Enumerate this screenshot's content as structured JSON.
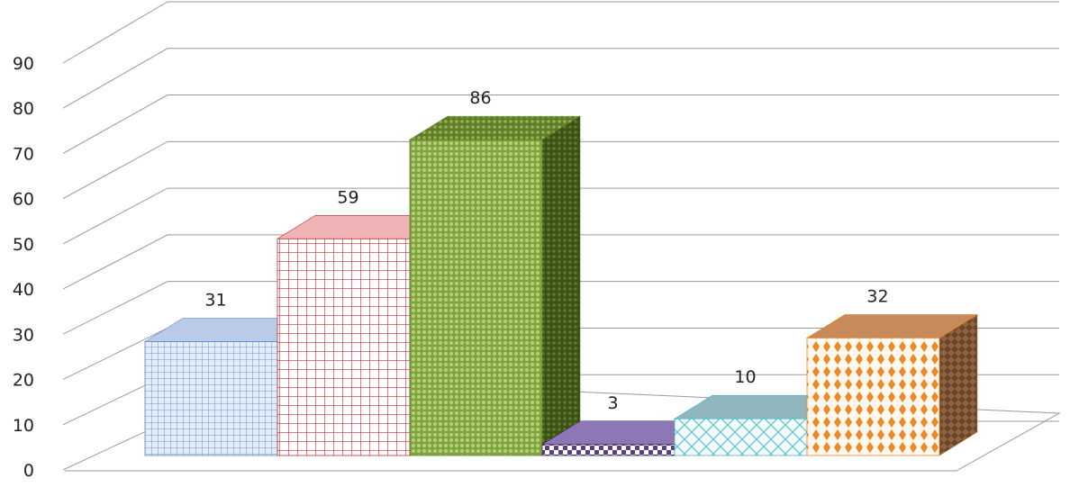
{
  "chart_data": {
    "type": "bar",
    "style": "3d-column",
    "categories": [
      "",
      "",
      "",
      "",
      "",
      ""
    ],
    "values": [
      31,
      59,
      86,
      3,
      10,
      32
    ],
    "data_labels": [
      "31",
      "59",
      "86",
      "3",
      "10",
      "32"
    ],
    "title": "",
    "xlabel": "",
    "ylabel": "",
    "ylim": [
      0,
      90
    ],
    "yticks": [
      0,
      10,
      20,
      30,
      40,
      50,
      60,
      70,
      80,
      90
    ],
    "grid": true,
    "legend": "none",
    "bars": [
      {
        "front": "#dbe8f8",
        "stroke": "#5b87c7",
        "top": "#b9cbe6",
        "side": "#7f9fcf",
        "pattern": "grid-fine"
      },
      {
        "front": "#ffffff",
        "stroke": "#c0282d",
        "top": "#f2b0b2",
        "side": "#d66a6d",
        "pattern": "grid-large"
      },
      {
        "front": "#95b455",
        "stroke": "#5d7a25",
        "top": "#6e8c33",
        "side": "#5a7426",
        "pattern": "dots"
      },
      {
        "front": "#6e5496",
        "stroke": "#3d2a60",
        "top": "#8e77b5",
        "side": "#4d3a72",
        "pattern": "checker"
      },
      {
        "front": "#e6f7f8",
        "stroke": "#45b6c4",
        "top": "#8fb7bd",
        "side": "#6c9ca2",
        "pattern": "diamond"
      },
      {
        "front": "#fff4e6",
        "stroke": "#e8892a",
        "top": "#c88a5a",
        "side": "#a06a3a",
        "pattern": "diamond-dots"
      }
    ]
  }
}
